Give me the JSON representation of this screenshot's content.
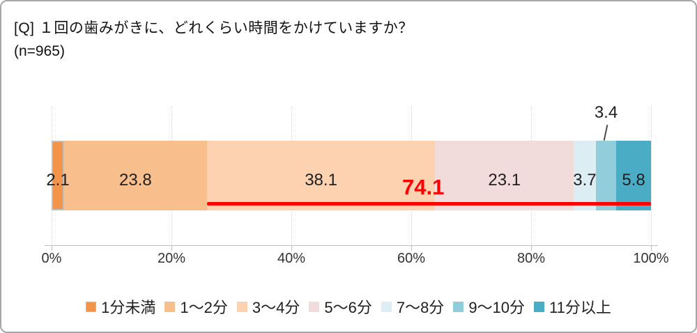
{
  "card": {
    "background": "#ffffff",
    "border_color": "#a6a6a6"
  },
  "header": {
    "question": "[Q] １回の歯みがきに、どれくらい時間をかけていますか？",
    "sample_size": "(n=965)"
  },
  "chart_data": {
    "type": "bar",
    "stacked": true,
    "orientation": "horizontal",
    "unit": "%",
    "title": "",
    "xlabel": "",
    "ylabel": "",
    "xlim": [
      0,
      100
    ],
    "grid": "vertical-dotted",
    "segments": [
      {
        "label": "1分未満",
        "value": 2.1,
        "value_label": "2.1",
        "color": "#F2944A",
        "border_color": "#BFBFBF"
      },
      {
        "label": "1～2分",
        "value": 23.8,
        "value_label": "23.8",
        "color": "#F8BE8C"
      },
      {
        "label": "3～4分",
        "value": 38.1,
        "value_label": "38.1",
        "color": "#FCD2B0"
      },
      {
        "label": "5～6分",
        "value": 23.1,
        "value_label": "23.1",
        "color": "#F2DCDB"
      },
      {
        "label": "7～8分",
        "value": 3.7,
        "value_label": "3.7",
        "color": "#DCEEF3"
      },
      {
        "label": "9～10分",
        "value": 3.4,
        "value_label": "3.4",
        "color": "#92CDDC",
        "callout": true
      },
      {
        "label": "11分以上",
        "value": 5.8,
        "value_label": "5.8",
        "color": "#4BACC6"
      }
    ],
    "x_axis": {
      "tick_labels": [
        "0%",
        "20%",
        "40%",
        "60%",
        "80%",
        "100%"
      ],
      "min": 0,
      "max": 100
    },
    "highlight": {
      "value_label": "74.1",
      "start_percent": 25.9,
      "end_percent": 100,
      "label_center_percent": 62,
      "color": "#FF0000"
    },
    "legend_position": "bottom"
  }
}
